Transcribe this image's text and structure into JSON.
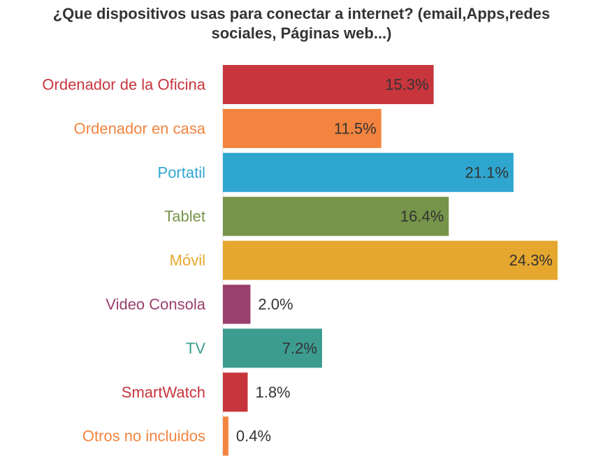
{
  "chart_data": {
    "type": "bar",
    "orientation": "horizontal",
    "title_lines": [
      "¿Que dispositivos usas para conectar a internet? (email,Apps,redes",
      "sociales, Páginas web...)"
    ],
    "xlabel": "",
    "ylabel": "",
    "xlim": [
      0,
      24.3
    ],
    "grid": false,
    "legend": "none",
    "value_format": "percent_1dp",
    "categories": [
      "Ordenador de la Oficina",
      "Ordenador en casa",
      "Portatil",
      "Tablet",
      "Móvil",
      "Video Consola",
      "TV",
      "SmartWatch",
      "Otros no incluidos"
    ],
    "values": [
      15.3,
      11.5,
      21.1,
      16.4,
      24.3,
      2.0,
      7.2,
      1.8,
      0.4
    ],
    "value_labels": [
      "15.3%",
      "11.5%",
      "21.1%",
      "16.4%",
      "24.3%",
      "2.0%",
      "7.2%",
      "1.8%",
      "0.4%"
    ],
    "colors": [
      "#c8353d",
      "#f2843f",
      "#2fa6cf",
      "#76954a",
      "#e6a72e",
      "#9b3f6d",
      "#3b9c8f",
      "#c8353d",
      "#f2843f"
    ]
  }
}
